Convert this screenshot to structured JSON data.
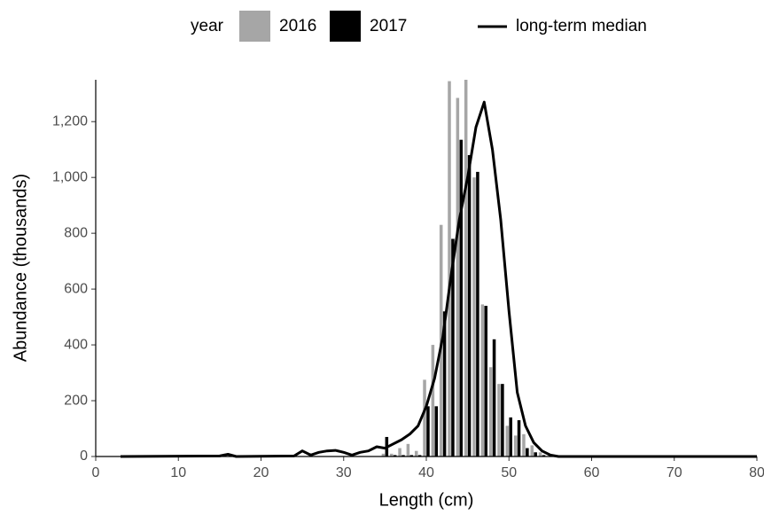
{
  "chart_data": {
    "type": "bar",
    "legend_title": "year",
    "x_label": "Length (cm)",
    "y_label": "Abundance (thousands)",
    "xlim": [
      0,
      80
    ],
    "xticks": [
      0,
      10,
      20,
      30,
      40,
      50,
      60,
      70,
      80
    ],
    "ylim": [
      0,
      1350
    ],
    "yticks": [
      0,
      200,
      400,
      600,
      800,
      {
        "value": 1000,
        "label": "1,000"
      },
      {
        "value": 1200,
        "label": "1,200"
      }
    ],
    "legend": "top",
    "series": [
      {
        "name": "2016",
        "color": "#a6a6a6",
        "type": "bar",
        "x": [
          35,
          36,
          37,
          38,
          39,
          40,
          41,
          42,
          43,
          44,
          45,
          46,
          47,
          48,
          49,
          50,
          51,
          52,
          53,
          54
        ],
        "values": [
          10,
          10,
          30,
          45,
          20,
          275,
          400,
          830,
          1345,
          1285,
          1350,
          1000,
          545,
          320,
          260,
          110,
          75,
          80,
          40,
          15
        ]
      },
      {
        "name": "2017",
        "color": "#000000",
        "type": "bar",
        "x": [
          35,
          36,
          37,
          38,
          39,
          40,
          41,
          42,
          43,
          44,
          45,
          46,
          47,
          48,
          49,
          50,
          51,
          52,
          53,
          54
        ],
        "values": [
          70,
          5,
          5,
          5,
          5,
          180,
          180,
          520,
          780,
          1135,
          1080,
          1020,
          540,
          420,
          260,
          140,
          130,
          30,
          15,
          5
        ]
      },
      {
        "name": "long-term median",
        "color": "#000000",
        "type": "line",
        "x": [
          3,
          15,
          16,
          17,
          24,
          25,
          26,
          27,
          28,
          29,
          30,
          31,
          32,
          33,
          34,
          35,
          36,
          37,
          38,
          39,
          40,
          41,
          42,
          43,
          44,
          45,
          46,
          47,
          48,
          49,
          50,
          51,
          52,
          53,
          54,
          55,
          56,
          80
        ],
        "values": [
          0,
          2,
          8,
          0,
          2,
          20,
          5,
          15,
          20,
          22,
          15,
          5,
          15,
          20,
          35,
          30,
          45,
          60,
          80,
          110,
          180,
          280,
          430,
          650,
          850,
          1000,
          1180,
          1270,
          1100,
          850,
          520,
          230,
          110,
          50,
          20,
          5,
          0,
          0
        ]
      }
    ]
  }
}
